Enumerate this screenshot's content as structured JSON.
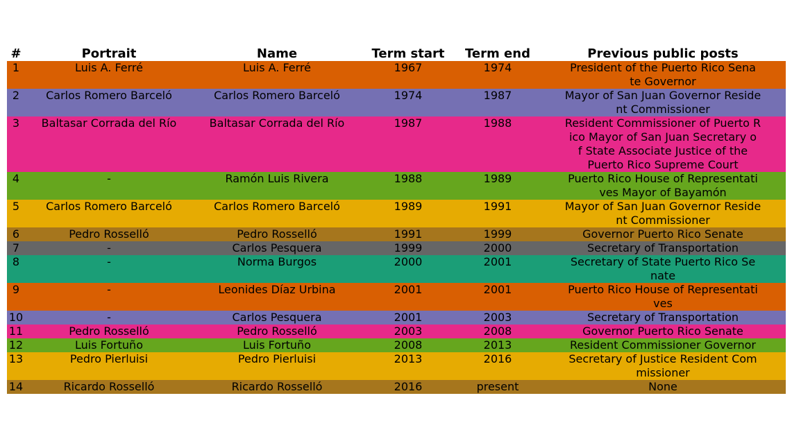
{
  "chart_data": {
    "type": "table",
    "columns": [
      "#",
      "Portrait",
      "Name",
      "Term start",
      "Term end",
      "Previous public posts"
    ],
    "rows": [
      {
        "color": "#d95f02",
        "cells": [
          "1",
          "Luis A. Ferré",
          "Luis A. Ferré",
          "1967",
          "1974",
          "President of the Puerto Rico Sena\nte Governor"
        ]
      },
      {
        "color": "#7570b3",
        "cells": [
          "2",
          "Carlos Romero Barceló",
          "Carlos Romero Barceló",
          "1974",
          "1987",
          "Mayor of San Juan Governor Reside\nnt Commissioner"
        ]
      },
      {
        "color": "#e7298a",
        "cells": [
          "3",
          "Baltasar Corrada del Río",
          "Baltasar Corrada del Río",
          "1987",
          "1988",
          "Resident Commissioner of Puerto R\nico Mayor of San Juan Secretary o\nf State Associate Justice of the\nPuerto Rico Supreme Court"
        ]
      },
      {
        "color": "#66a61e",
        "cells": [
          "4",
          "-",
          "Ramón Luis Rivera",
          "1988",
          "1989",
          "Puerto Rico House of Representati\nves Mayor of Bayamón"
        ]
      },
      {
        "color": "#e6ab02",
        "cells": [
          "5",
          "Carlos Romero Barceló",
          "Carlos Romero Barceló",
          "1989",
          "1991",
          "Mayor of San Juan Governor Reside\nnt Commissioner"
        ]
      },
      {
        "color": "#a6761d",
        "cells": [
          "6",
          "Pedro Rosselló",
          "Pedro Rosselló",
          "1991",
          "1999",
          "Governor Puerto Rico Senate"
        ]
      },
      {
        "color": "#666666",
        "cells": [
          "7",
          "-",
          "Carlos Pesquera",
          "1999",
          "2000",
          "Secretary of Transportation"
        ]
      },
      {
        "color": "#1b9e77",
        "cells": [
          "8",
          "-",
          "Norma Burgos",
          "2000",
          "2001",
          "Secretary of State Puerto Rico Se\nnate"
        ]
      },
      {
        "color": "#d95f02",
        "cells": [
          "9",
          "-",
          "Leonides Díaz Urbina",
          "2001",
          "2001",
          "Puerto Rico House of Representati\nves"
        ]
      },
      {
        "color": "#7570b3",
        "cells": [
          "10",
          "-",
          "Carlos Pesquera",
          "2001",
          "2003",
          "Secretary of Transportation"
        ]
      },
      {
        "color": "#e7298a",
        "cells": [
          "11",
          "Pedro Rosselló",
          "Pedro Rosselló",
          "2003",
          "2008",
          "Governor Puerto Rico Senate"
        ]
      },
      {
        "color": "#66a61e",
        "cells": [
          "12",
          "Luis Fortuño",
          "Luis Fortuño",
          "2008",
          "2013",
          "Resident Commissioner Governor"
        ]
      },
      {
        "color": "#e6ab02",
        "cells": [
          "13",
          "Pedro Pierluisi",
          "Pedro Pierluisi",
          "2013",
          "2016",
          "Secretary of Justice Resident Com\nmissioner"
        ]
      },
      {
        "color": "#a6761d",
        "cells": [
          "14",
          "Ricardo Rosselló",
          "Ricardo Rosselló",
          "2016",
          "present",
          "None"
        ]
      }
    ]
  }
}
